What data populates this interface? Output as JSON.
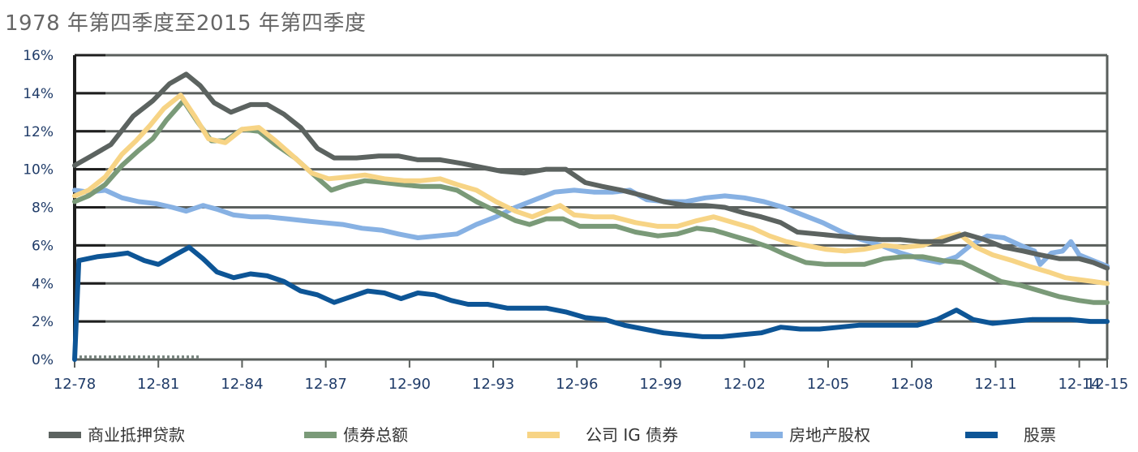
{
  "title": "1978 年第四季度至2015 年第四季度",
  "chart_data": {
    "type": "line",
    "title": "1978 年第四季度至2015 年第四季度",
    "xlabel": "",
    "ylabel": "",
    "ylim": [
      0,
      16
    ],
    "yticks": [
      0,
      2,
      4,
      6,
      8,
      10,
      12,
      14,
      16
    ],
    "ytick_labels": [
      "0%",
      "2%",
      "4%",
      "6%",
      "8%",
      "10%",
      "12%",
      "14%",
      "16%"
    ],
    "xlim": [
      1978.9,
      2015.9
    ],
    "xticks": [
      1978.9,
      1981.9,
      1984.9,
      1987.9,
      1990.9,
      1993.9,
      1996.9,
      1999.9,
      2002.9,
      2005.9,
      2008.9,
      2011.9,
      2014.9,
      2015.9
    ],
    "xtick_labels": [
      "12-78",
      "12-81",
      "12-84",
      "12-87",
      "12-90",
      "12-93",
      "12-96",
      "12-99",
      "12-02",
      "12-05",
      "12-08",
      "12-11",
      "12-14",
      "12-15"
    ],
    "grid": true,
    "legend_position": "bottom",
    "series": [
      {
        "name": "商业抵押贷款",
        "color": "#5c6360",
        "points": [
          [
            1978.9,
            10.2
          ],
          [
            1979.5,
            10.7
          ],
          [
            1980.2,
            11.3
          ],
          [
            1981.0,
            12.8
          ],
          [
            1981.7,
            13.6
          ],
          [
            1982.3,
            14.5
          ],
          [
            1982.9,
            15.0
          ],
          [
            1983.4,
            14.4
          ],
          [
            1983.9,
            13.5
          ],
          [
            1984.5,
            13.0
          ],
          [
            1985.2,
            13.4
          ],
          [
            1985.8,
            13.4
          ],
          [
            1986.4,
            12.9
          ],
          [
            1987.0,
            12.2
          ],
          [
            1987.6,
            11.1
          ],
          [
            1988.2,
            10.6
          ],
          [
            1989.0,
            10.6
          ],
          [
            1989.8,
            10.7
          ],
          [
            1990.5,
            10.7
          ],
          [
            1991.2,
            10.5
          ],
          [
            1992.0,
            10.5
          ],
          [
            1992.8,
            10.3
          ],
          [
            1993.5,
            10.1
          ],
          [
            1994.2,
            9.9
          ],
          [
            1995.0,
            9.8
          ],
          [
            1995.8,
            10.0
          ],
          [
            1996.5,
            10.0
          ],
          [
            1997.2,
            9.3
          ],
          [
            1997.8,
            9.1
          ],
          [
            1998.5,
            8.9
          ],
          [
            1999.3,
            8.6
          ],
          [
            2000.0,
            8.3
          ],
          [
            2000.8,
            8.1
          ],
          [
            2001.5,
            8.1
          ],
          [
            2002.2,
            8.0
          ],
          [
            2002.9,
            7.7
          ],
          [
            2003.5,
            7.5
          ],
          [
            2004.2,
            7.2
          ],
          [
            2004.8,
            6.7
          ],
          [
            2005.5,
            6.6
          ],
          [
            2006.2,
            6.5
          ],
          [
            2007.0,
            6.4
          ],
          [
            2007.8,
            6.3
          ],
          [
            2008.5,
            6.3
          ],
          [
            2009.2,
            6.2
          ],
          [
            2010.0,
            6.2
          ],
          [
            2010.8,
            6.6
          ],
          [
            2011.5,
            6.3
          ],
          [
            2012.2,
            5.9
          ],
          [
            2012.9,
            5.7
          ],
          [
            2013.5,
            5.5
          ],
          [
            2014.2,
            5.3
          ],
          [
            2014.9,
            5.3
          ],
          [
            2015.4,
            5.1
          ],
          [
            2015.9,
            4.8
          ]
        ]
      },
      {
        "name": "债券总额",
        "color": "#7a9a78",
        "points": [
          [
            1978.9,
            8.3
          ],
          [
            1979.4,
            8.6
          ],
          [
            1980.0,
            9.2
          ],
          [
            1980.6,
            10.2
          ],
          [
            1981.2,
            11.0
          ],
          [
            1981.7,
            11.6
          ],
          [
            1982.2,
            12.6
          ],
          [
            1982.8,
            13.6
          ],
          [
            1983.3,
            12.5
          ],
          [
            1983.8,
            11.5
          ],
          [
            1984.3,
            11.5
          ],
          [
            1984.9,
            12.1
          ],
          [
            1985.5,
            12.0
          ],
          [
            1986.1,
            11.3
          ],
          [
            1986.8,
            10.6
          ],
          [
            1987.4,
            9.8
          ],
          [
            1988.1,
            8.9
          ],
          [
            1988.7,
            9.2
          ],
          [
            1989.3,
            9.4
          ],
          [
            1990.0,
            9.3
          ],
          [
            1990.6,
            9.2
          ],
          [
            1991.3,
            9.1
          ],
          [
            1992.0,
            9.1
          ],
          [
            1992.6,
            8.9
          ],
          [
            1993.3,
            8.3
          ],
          [
            1994.0,
            7.8
          ],
          [
            1994.7,
            7.3
          ],
          [
            1995.2,
            7.1
          ],
          [
            1995.8,
            7.4
          ],
          [
            1996.4,
            7.4
          ],
          [
            1997.0,
            7.0
          ],
          [
            1997.6,
            7.0
          ],
          [
            1998.3,
            7.0
          ],
          [
            1999.0,
            6.7
          ],
          [
            1999.8,
            6.5
          ],
          [
            2000.5,
            6.6
          ],
          [
            2001.2,
            6.9
          ],
          [
            2001.8,
            6.8
          ],
          [
            2002.5,
            6.5
          ],
          [
            2003.2,
            6.2
          ],
          [
            2003.8,
            5.9
          ],
          [
            2004.4,
            5.5
          ],
          [
            2005.1,
            5.1
          ],
          [
            2005.8,
            5.0
          ],
          [
            2006.5,
            5.0
          ],
          [
            2007.2,
            5.0
          ],
          [
            2007.9,
            5.3
          ],
          [
            2008.6,
            5.4
          ],
          [
            2009.3,
            5.4
          ],
          [
            2010.0,
            5.2
          ],
          [
            2010.7,
            5.1
          ],
          [
            2011.4,
            4.6
          ],
          [
            2012.1,
            4.1
          ],
          [
            2012.8,
            3.9
          ],
          [
            2013.5,
            3.6
          ],
          [
            2014.2,
            3.3
          ],
          [
            2014.9,
            3.1
          ],
          [
            2015.4,
            3.0
          ],
          [
            2015.9,
            3.0
          ]
        ]
      },
      {
        "name": "公司 IG 债券",
        "color": "#f7d485",
        "points": [
          [
            1978.9,
            8.6
          ],
          [
            1979.4,
            8.9
          ],
          [
            1980.0,
            9.6
          ],
          [
            1980.6,
            10.8
          ],
          [
            1981.1,
            11.5
          ],
          [
            1981.6,
            12.3
          ],
          [
            1982.1,
            13.2
          ],
          [
            1982.7,
            13.9
          ],
          [
            1983.2,
            12.8
          ],
          [
            1983.7,
            11.6
          ],
          [
            1984.3,
            11.4
          ],
          [
            1984.9,
            12.1
          ],
          [
            1985.5,
            12.2
          ],
          [
            1986.1,
            11.5
          ],
          [
            1986.8,
            10.6
          ],
          [
            1987.4,
            9.8
          ],
          [
            1988.0,
            9.5
          ],
          [
            1988.7,
            9.6
          ],
          [
            1989.3,
            9.7
          ],
          [
            1990.0,
            9.5
          ],
          [
            1990.7,
            9.4
          ],
          [
            1991.3,
            9.4
          ],
          [
            1992.0,
            9.5
          ],
          [
            1992.6,
            9.2
          ],
          [
            1993.3,
            8.9
          ],
          [
            1994.0,
            8.3
          ],
          [
            1994.7,
            7.8
          ],
          [
            1995.3,
            7.5
          ],
          [
            1995.8,
            7.8
          ],
          [
            1996.3,
            8.1
          ],
          [
            1996.8,
            7.6
          ],
          [
            1997.5,
            7.5
          ],
          [
            1998.2,
            7.5
          ],
          [
            1999.0,
            7.2
          ],
          [
            1999.8,
            7.0
          ],
          [
            2000.5,
            7.0
          ],
          [
            2001.2,
            7.3
          ],
          [
            2001.8,
            7.5
          ],
          [
            2002.5,
            7.2
          ],
          [
            2003.2,
            6.9
          ],
          [
            2003.8,
            6.5
          ],
          [
            2004.4,
            6.2
          ],
          [
            2005.1,
            6.0
          ],
          [
            2005.8,
            5.8
          ],
          [
            2006.5,
            5.7
          ],
          [
            2007.2,
            5.8
          ],
          [
            2007.9,
            6.0
          ],
          [
            2008.6,
            5.9
          ],
          [
            2009.3,
            6.0
          ],
          [
            2010.0,
            6.4
          ],
          [
            2010.6,
            6.6
          ],
          [
            2011.2,
            5.9
          ],
          [
            2011.8,
            5.5
          ],
          [
            2012.5,
            5.2
          ],
          [
            2013.1,
            4.9
          ],
          [
            2013.8,
            4.6
          ],
          [
            2014.4,
            4.3
          ],
          [
            2014.9,
            4.2
          ],
          [
            2015.4,
            4.1
          ],
          [
            2015.9,
            4.0
          ]
        ]
      },
      {
        "name": "房地产股权",
        "color": "#87b1e3",
        "points": [
          [
            1978.9,
            8.9
          ],
          [
            1979.4,
            8.8
          ],
          [
            1980.0,
            8.9
          ],
          [
            1980.6,
            8.5
          ],
          [
            1981.2,
            8.3
          ],
          [
            1981.8,
            8.2
          ],
          [
            1982.4,
            8.0
          ],
          [
            1982.9,
            7.8
          ],
          [
            1983.5,
            8.1
          ],
          [
            1984.0,
            7.9
          ],
          [
            1984.6,
            7.6
          ],
          [
            1985.2,
            7.5
          ],
          [
            1985.8,
            7.5
          ],
          [
            1986.5,
            7.4
          ],
          [
            1987.1,
            7.3
          ],
          [
            1987.8,
            7.2
          ],
          [
            1988.5,
            7.1
          ],
          [
            1989.2,
            6.9
          ],
          [
            1989.9,
            6.8
          ],
          [
            1990.5,
            6.6
          ],
          [
            1991.2,
            6.4
          ],
          [
            1991.9,
            6.5
          ],
          [
            1992.6,
            6.6
          ],
          [
            1993.3,
            7.1
          ],
          [
            1994.0,
            7.5
          ],
          [
            1994.7,
            8.0
          ],
          [
            1995.4,
            8.4
          ],
          [
            1996.1,
            8.8
          ],
          [
            1996.8,
            8.9
          ],
          [
            1997.5,
            8.8
          ],
          [
            1998.2,
            8.8
          ],
          [
            1998.8,
            8.9
          ],
          [
            1999.4,
            8.4
          ],
          [
            2000.1,
            8.3
          ],
          [
            2000.8,
            8.3
          ],
          [
            2001.5,
            8.5
          ],
          [
            2002.2,
            8.6
          ],
          [
            2002.9,
            8.5
          ],
          [
            2003.6,
            8.3
          ],
          [
            2004.3,
            8.0
          ],
          [
            2005.0,
            7.6
          ],
          [
            2005.7,
            7.2
          ],
          [
            2006.4,
            6.7
          ],
          [
            2007.1,
            6.3
          ],
          [
            2007.8,
            6.0
          ],
          [
            2008.5,
            5.6
          ],
          [
            2009.2,
            5.3
          ],
          [
            2009.9,
            5.1
          ],
          [
            2010.5,
            5.4
          ],
          [
            2011.0,
            6.0
          ],
          [
            2011.6,
            6.5
          ],
          [
            2012.2,
            6.4
          ],
          [
            2012.8,
            6.0
          ],
          [
            2013.3,
            5.7
          ],
          [
            2013.5,
            5.0
          ],
          [
            2013.9,
            5.6
          ],
          [
            2014.3,
            5.7
          ],
          [
            2014.6,
            6.2
          ],
          [
            2014.9,
            5.5
          ],
          [
            2015.4,
            5.2
          ],
          [
            2015.9,
            4.9
          ]
        ]
      },
      {
        "name": "股票",
        "color": "#0d5596",
        "points": [
          [
            1978.9,
            0.0
          ],
          [
            1979.05,
            5.2
          ],
          [
            1979.7,
            5.4
          ],
          [
            1980.3,
            5.5
          ],
          [
            1980.8,
            5.6
          ],
          [
            1981.4,
            5.2
          ],
          [
            1981.9,
            5.0
          ],
          [
            1982.5,
            5.5
          ],
          [
            1983.0,
            5.9
          ],
          [
            1983.5,
            5.3
          ],
          [
            1984.0,
            4.6
          ],
          [
            1984.6,
            4.3
          ],
          [
            1985.2,
            4.5
          ],
          [
            1985.8,
            4.4
          ],
          [
            1986.4,
            4.1
          ],
          [
            1987.0,
            3.6
          ],
          [
            1987.6,
            3.4
          ],
          [
            1988.2,
            3.0
          ],
          [
            1988.8,
            3.3
          ],
          [
            1989.4,
            3.6
          ],
          [
            1990.0,
            3.5
          ],
          [
            1990.6,
            3.2
          ],
          [
            1991.2,
            3.5
          ],
          [
            1991.8,
            3.4
          ],
          [
            1992.4,
            3.1
          ],
          [
            1993.0,
            2.9
          ],
          [
            1993.7,
            2.9
          ],
          [
            1994.4,
            2.7
          ],
          [
            1995.1,
            2.7
          ],
          [
            1995.8,
            2.7
          ],
          [
            1996.5,
            2.5
          ],
          [
            1997.2,
            2.2
          ],
          [
            1997.9,
            2.1
          ],
          [
            1998.6,
            1.8
          ],
          [
            1999.3,
            1.6
          ],
          [
            2000.0,
            1.4
          ],
          [
            2000.7,
            1.3
          ],
          [
            2001.4,
            1.2
          ],
          [
            2002.1,
            1.2
          ],
          [
            2002.8,
            1.3
          ],
          [
            2003.5,
            1.4
          ],
          [
            2004.2,
            1.7
          ],
          [
            2004.9,
            1.6
          ],
          [
            2005.6,
            1.6
          ],
          [
            2006.3,
            1.7
          ],
          [
            2007.0,
            1.8
          ],
          [
            2007.7,
            1.8
          ],
          [
            2008.4,
            1.8
          ],
          [
            2009.1,
            1.8
          ],
          [
            2009.8,
            2.1
          ],
          [
            2010.5,
            2.6
          ],
          [
            2011.1,
            2.1
          ],
          [
            2011.8,
            1.9
          ],
          [
            2012.5,
            2.0
          ],
          [
            2013.2,
            2.1
          ],
          [
            2013.9,
            2.1
          ],
          [
            2014.6,
            2.1
          ],
          [
            2015.3,
            2.0
          ],
          [
            2015.9,
            2.0
          ]
        ]
      }
    ]
  }
}
